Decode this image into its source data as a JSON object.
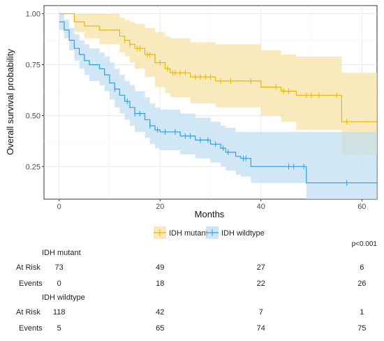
{
  "chart_data": {
    "type": "line",
    "subtype": "kaplan-meier",
    "xlabel": "Months",
    "ylabel": "Overall survival probability",
    "xlim": [
      -3,
      63
    ],
    "ylim": [
      0.09,
      1.04
    ],
    "xticks": [
      0,
      20,
      40,
      60
    ],
    "yticks": [
      0.25,
      0.5,
      0.75,
      1.0
    ],
    "ytick_labels": [
      "0.25",
      "0.50",
      "0.75",
      "1.00"
    ],
    "grid": true,
    "legend_position": "bottom",
    "series": [
      {
        "name": "IDH mutant",
        "color": "#E7B800",
        "fill": "#F6E3A6",
        "steps": [
          [
            0,
            1.0
          ],
          [
            3,
            0.96
          ],
          [
            5,
            0.94
          ],
          [
            8,
            0.92
          ],
          [
            12,
            0.89
          ],
          [
            13,
            0.87
          ],
          [
            14,
            0.85
          ],
          [
            15,
            0.83
          ],
          [
            17,
            0.8
          ],
          [
            19,
            0.76
          ],
          [
            21,
            0.73
          ],
          [
            22,
            0.71
          ],
          [
            26,
            0.69
          ],
          [
            31,
            0.67
          ],
          [
            40,
            0.64
          ],
          [
            44,
            0.62
          ],
          [
            47,
            0.6
          ],
          [
            56,
            0.47
          ],
          [
            63,
            0.47
          ]
        ],
        "lower": [
          [
            0,
            1.0
          ],
          [
            3,
            0.91
          ],
          [
            5,
            0.88
          ],
          [
            8,
            0.85
          ],
          [
            12,
            0.81
          ],
          [
            13,
            0.79
          ],
          [
            14,
            0.76
          ],
          [
            15,
            0.73
          ],
          [
            17,
            0.69
          ],
          [
            19,
            0.64
          ],
          [
            21,
            0.61
          ],
          [
            22,
            0.59
          ],
          [
            26,
            0.56
          ],
          [
            31,
            0.54
          ],
          [
            40,
            0.5
          ],
          [
            44,
            0.47
          ],
          [
            47,
            0.43
          ],
          [
            56,
            0.31
          ],
          [
            63,
            0.31
          ]
        ],
        "upper": [
          [
            0,
            1.0
          ],
          [
            3,
            1.0
          ],
          [
            5,
            1.0
          ],
          [
            8,
            1.0
          ],
          [
            12,
            0.98
          ],
          [
            13,
            0.97
          ],
          [
            14,
            0.96
          ],
          [
            15,
            0.95
          ],
          [
            17,
            0.93
          ],
          [
            19,
            0.91
          ],
          [
            21,
            0.89
          ],
          [
            22,
            0.88
          ],
          [
            26,
            0.86
          ],
          [
            31,
            0.85
          ],
          [
            40,
            0.82
          ],
          [
            44,
            0.8
          ],
          [
            47,
            0.79
          ],
          [
            56,
            0.71
          ],
          [
            63,
            0.71
          ]
        ],
        "censor_times": [
          13,
          14,
          15.5,
          16,
          17.5,
          18,
          20,
          21.5,
          22.5,
          23,
          24,
          25,
          27,
          28,
          29,
          30,
          32,
          34,
          38,
          43,
          44.5,
          45.5,
          49,
          50,
          51.5,
          55,
          57
        ]
      },
      {
        "name": "IDH wildtype",
        "color": "#2E9FDF",
        "fill": "#BDDDF1",
        "steps": [
          [
            0,
            0.96
          ],
          [
            1,
            0.92
          ],
          [
            2,
            0.87
          ],
          [
            3,
            0.83
          ],
          [
            4,
            0.8
          ],
          [
            5,
            0.77
          ],
          [
            6,
            0.75
          ],
          [
            8,
            0.73
          ],
          [
            9,
            0.7
          ],
          [
            10,
            0.66
          ],
          [
            11,
            0.63
          ],
          [
            12,
            0.6
          ],
          [
            13,
            0.57
          ],
          [
            14,
            0.54
          ],
          [
            15,
            0.51
          ],
          [
            17,
            0.48
          ],
          [
            18,
            0.45
          ],
          [
            19,
            0.43
          ],
          [
            20,
            0.42
          ],
          [
            24,
            0.4
          ],
          [
            27,
            0.38
          ],
          [
            30,
            0.36
          ],
          [
            32,
            0.34
          ],
          [
            33,
            0.32
          ],
          [
            35,
            0.3
          ],
          [
            36,
            0.29
          ],
          [
            38,
            0.25
          ],
          [
            49,
            0.17
          ],
          [
            63,
            0.17
          ]
        ],
        "lower": [
          [
            0,
            0.92
          ],
          [
            1,
            0.88
          ],
          [
            2,
            0.82
          ],
          [
            3,
            0.77
          ],
          [
            4,
            0.73
          ],
          [
            5,
            0.7
          ],
          [
            6,
            0.67
          ],
          [
            8,
            0.65
          ],
          [
            9,
            0.62
          ],
          [
            10,
            0.58
          ],
          [
            11,
            0.54
          ],
          [
            12,
            0.51
          ],
          [
            13,
            0.48
          ],
          [
            14,
            0.45
          ],
          [
            15,
            0.42
          ],
          [
            17,
            0.39
          ],
          [
            18,
            0.36
          ],
          [
            19,
            0.34
          ],
          [
            20,
            0.33
          ],
          [
            24,
            0.31
          ],
          [
            27,
            0.29
          ],
          [
            30,
            0.27
          ],
          [
            32,
            0.25
          ],
          [
            33,
            0.23
          ],
          [
            35,
            0.21
          ],
          [
            36,
            0.2
          ],
          [
            38,
            0.17
          ],
          [
            49,
            0.09
          ],
          [
            63,
            0.09
          ]
        ],
        "upper": [
          [
            0,
            1.0
          ],
          [
            1,
            0.97
          ],
          [
            2,
            0.93
          ],
          [
            3,
            0.9
          ],
          [
            4,
            0.87
          ],
          [
            5,
            0.85
          ],
          [
            6,
            0.83
          ],
          [
            8,
            0.81
          ],
          [
            9,
            0.79
          ],
          [
            10,
            0.76
          ],
          [
            11,
            0.73
          ],
          [
            12,
            0.7
          ],
          [
            13,
            0.67
          ],
          [
            14,
            0.65
          ],
          [
            15,
            0.62
          ],
          [
            17,
            0.59
          ],
          [
            18,
            0.56
          ],
          [
            19,
            0.54
          ],
          [
            20,
            0.53
          ],
          [
            24,
            0.51
          ],
          [
            27,
            0.49
          ],
          [
            30,
            0.47
          ],
          [
            32,
            0.45
          ],
          [
            33,
            0.44
          ],
          [
            35,
            0.42
          ],
          [
            36,
            0.42
          ],
          [
            38,
            0.42
          ],
          [
            49,
            0.42
          ],
          [
            63,
            0.42
          ]
        ],
        "censor_times": [
          11,
          13.5,
          15,
          16,
          18,
          19.5,
          21,
          23,
          25,
          26,
          28,
          29.5,
          31,
          32.5,
          33.5,
          36.5,
          37,
          45.5,
          46.5,
          48.5,
          57
        ]
      }
    ],
    "p_value": "p<0.001",
    "risk_table": {
      "time_points": [
        0,
        20,
        40,
        60
      ],
      "groups": [
        {
          "name": "IDH mutant",
          "at_risk": [
            73,
            49,
            27,
            6
          ],
          "events": [
            0,
            18,
            22,
            26
          ]
        },
        {
          "name": "IDH wildtype",
          "at_risk": [
            118,
            42,
            7,
            1
          ],
          "events": [
            5,
            65,
            74,
            75
          ]
        }
      ],
      "row_labels": {
        "at_risk": "At Risk",
        "events": "Events"
      }
    }
  }
}
